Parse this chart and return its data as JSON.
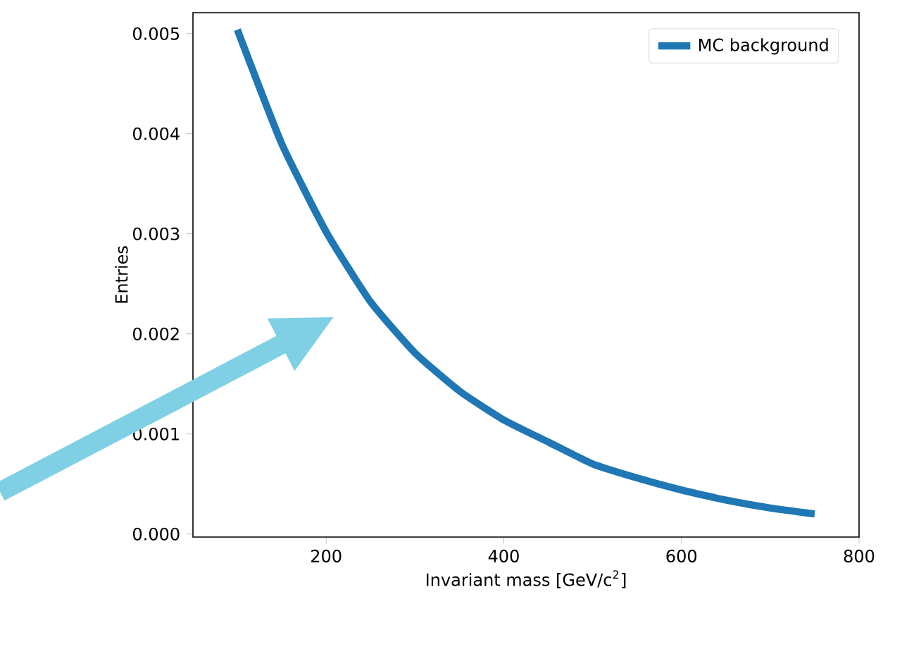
{
  "chart_data": {
    "type": "line",
    "xlabel": "Invariant mass [GeV/c$^{2}$]",
    "ylabel": "Entries",
    "x": [
      100,
      150,
      200,
      250,
      300,
      350,
      400,
      450,
      500,
      550,
      600,
      650,
      700,
      750
    ],
    "series": [
      {
        "name": "MC background",
        "color": "#1f77b4",
        "values": [
          0.00504,
          0.0039,
          0.00302,
          0.00232,
          0.00181,
          0.00143,
          0.00114,
          0.00092,
          0.0007,
          0.00056,
          0.00044,
          0.00034,
          0.00026,
          0.0002
        ]
      }
    ],
    "xlim": [
      50,
      800
    ],
    "ylim": [
      -3e-05,
      0.00521
    ],
    "xticks": [
      200,
      400,
      600,
      800
    ],
    "yticks": [
      {
        "value": 0,
        "label": "0.000"
      },
      {
        "value": 0.001,
        "label": "0.001"
      },
      {
        "value": 0.002,
        "label": "0.002"
      },
      {
        "value": 0.003,
        "label": "0.003"
      },
      {
        "value": 0.004,
        "label": "0.004"
      },
      {
        "value": 0.005,
        "label": "0.005"
      }
    ],
    "legend": "top right"
  }
}
